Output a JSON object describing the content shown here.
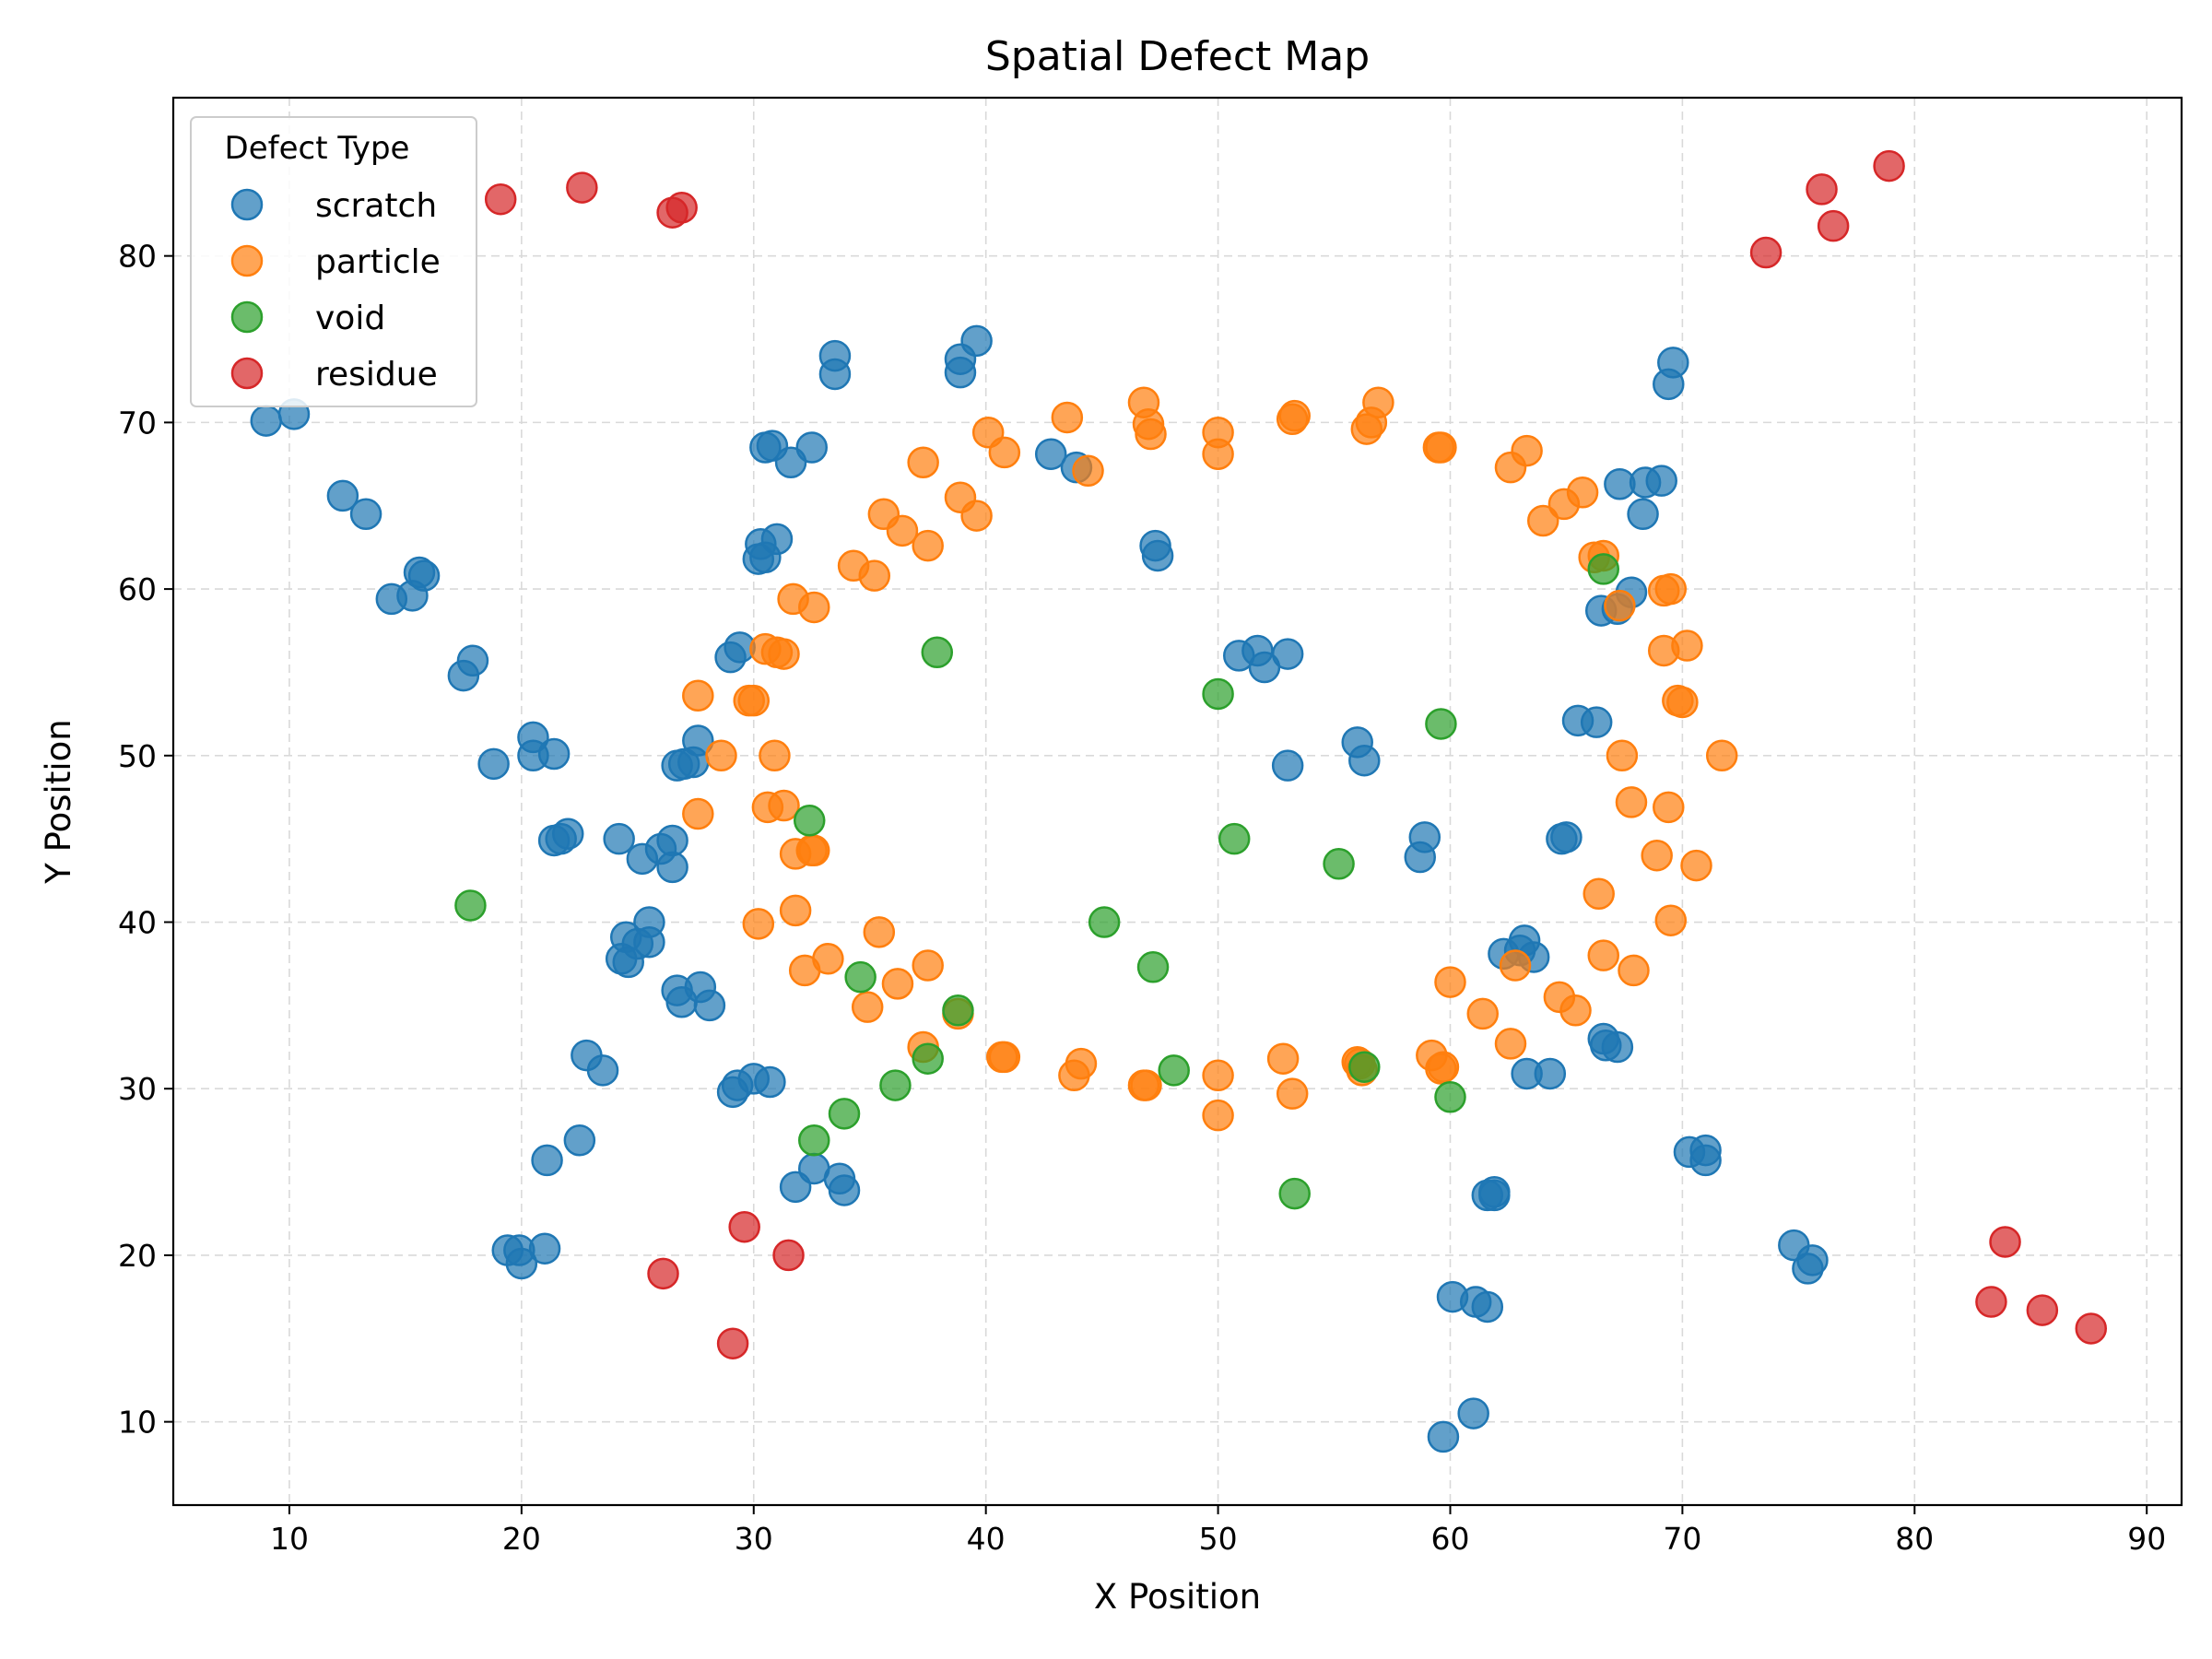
{
  "chart_data": {
    "type": "scatter",
    "title": "Spatial Defect Map",
    "xlabel": "X Position",
    "ylabel": "Y Position",
    "xlim": [
      5,
      91.5
    ],
    "ylim": [
      5,
      89.5
    ],
    "xticks": [
      10,
      20,
      30,
      40,
      50,
      60,
      70,
      80,
      90
    ],
    "yticks": [
      10,
      20,
      30,
      40,
      50,
      60,
      70,
      80
    ],
    "grid": true,
    "legend": {
      "title": "Defect Type",
      "placement": "top-left"
    },
    "series": [
      {
        "name": "scratch",
        "color": "#1f77b4",
        "points": [
          [
            9.0,
            70.1
          ],
          [
            10.2,
            70.5
          ],
          [
            12.3,
            65.6
          ],
          [
            13.3,
            64.5
          ],
          [
            15.6,
            61.0
          ],
          [
            15.8,
            60.8
          ],
          [
            15.3,
            59.6
          ],
          [
            14.4,
            59.4
          ],
          [
            17.9,
            55.7
          ],
          [
            17.5,
            54.8
          ],
          [
            20.5,
            51.1
          ],
          [
            20.5,
            50.0
          ],
          [
            21.4,
            50.1
          ],
          [
            18.8,
            49.5
          ],
          [
            21.4,
            44.9
          ],
          [
            21.7,
            45.0
          ],
          [
            22.0,
            45.3
          ],
          [
            24.2,
            45.0
          ],
          [
            25.2,
            43.8
          ],
          [
            26.0,
            44.4
          ],
          [
            26.5,
            44.9
          ],
          [
            26.5,
            43.3
          ],
          [
            25.5,
            40.0
          ],
          [
            24.5,
            39.1
          ],
          [
            25.0,
            38.7
          ],
          [
            25.5,
            38.8
          ],
          [
            24.3,
            37.8
          ],
          [
            24.6,
            37.6
          ],
          [
            26.7,
            49.4
          ],
          [
            27.0,
            49.5
          ],
          [
            27.4,
            49.6
          ],
          [
            27.6,
            50.9
          ],
          [
            26.7,
            35.9
          ],
          [
            26.9,
            35.2
          ],
          [
            27.7,
            36.1
          ],
          [
            28.1,
            35.0
          ],
          [
            22.8,
            32.0
          ],
          [
            23.5,
            31.1
          ],
          [
            22.5,
            26.9
          ],
          [
            21.1,
            25.7
          ],
          [
            19.4,
            20.3
          ],
          [
            19.9,
            20.3
          ],
          [
            20.0,
            19.5
          ],
          [
            21.0,
            20.4
          ],
          [
            29.0,
            55.9
          ],
          [
            29.4,
            56.5
          ],
          [
            30.2,
            61.8
          ],
          [
            30.5,
            61.9
          ],
          [
            30.3,
            62.7
          ],
          [
            31.0,
            63.0
          ],
          [
            30.5,
            68.5
          ],
          [
            30.8,
            68.6
          ],
          [
            31.6,
            67.6
          ],
          [
            32.5,
            68.5
          ],
          [
            33.5,
            74.0
          ],
          [
            33.5,
            72.9
          ],
          [
            38.9,
            73.8
          ],
          [
            38.9,
            73.0
          ],
          [
            39.6,
            74.9
          ],
          [
            42.8,
            68.1
          ],
          [
            43.9,
            67.3
          ],
          [
            47.3,
            62.6
          ],
          [
            47.4,
            62.0
          ],
          [
            29.1,
            29.8
          ],
          [
            29.3,
            30.2
          ],
          [
            30.0,
            30.6
          ],
          [
            30.7,
            30.4
          ],
          [
            31.8,
            24.1
          ],
          [
            32.6,
            25.2
          ],
          [
            33.7,
            24.6
          ],
          [
            33.9,
            23.9
          ],
          [
            50.9,
            56.0
          ],
          [
            51.7,
            56.3
          ],
          [
            52.0,
            55.3
          ],
          [
            53.0,
            56.1
          ],
          [
            53.0,
            49.4
          ],
          [
            56.0,
            50.8
          ],
          [
            56.3,
            49.7
          ],
          [
            58.7,
            43.9
          ],
          [
            58.9,
            45.1
          ],
          [
            62.3,
            38.1
          ],
          [
            63.0,
            38.3
          ],
          [
            63.2,
            38.9
          ],
          [
            63.6,
            37.9
          ],
          [
            63.3,
            30.9
          ],
          [
            64.3,
            30.9
          ],
          [
            64.8,
            45.0
          ],
          [
            65.0,
            45.1
          ],
          [
            65.5,
            52.1
          ],
          [
            66.3,
            52.0
          ],
          [
            66.5,
            58.7
          ],
          [
            67.2,
            58.8
          ],
          [
            67.8,
            59.8
          ],
          [
            67.3,
            66.3
          ],
          [
            68.3,
            64.5
          ],
          [
            68.4,
            66.4
          ],
          [
            69.1,
            66.5
          ],
          [
            69.6,
            73.6
          ],
          [
            69.4,
            72.3
          ],
          [
            66.6,
            33.0
          ],
          [
            66.7,
            32.6
          ],
          [
            67.2,
            32.5
          ],
          [
            61.6,
            23.6
          ],
          [
            61.9,
            23.6
          ],
          [
            61.9,
            23.8
          ],
          [
            60.1,
            17.5
          ],
          [
            61.1,
            17.2
          ],
          [
            61.6,
            16.9
          ],
          [
            59.7,
            9.1
          ],
          [
            61.0,
            10.5
          ],
          [
            70.3,
            26.2
          ],
          [
            71.0,
            26.3
          ],
          [
            71.0,
            25.7
          ],
          [
            74.8,
            20.6
          ],
          [
            75.4,
            19.2
          ],
          [
            75.6,
            19.7
          ]
        ]
      },
      {
        "name": "particle",
        "color": "#ff7f0e",
        "points": [
          [
            27.6,
            53.6
          ],
          [
            27.6,
            46.5
          ],
          [
            28.6,
            50.0
          ],
          [
            29.8,
            53.3
          ],
          [
            30.0,
            53.3
          ],
          [
            30.5,
            56.4
          ],
          [
            31.0,
            56.2
          ],
          [
            31.3,
            56.1
          ],
          [
            30.9,
            50.0
          ],
          [
            30.6,
            46.9
          ],
          [
            31.3,
            47.0
          ],
          [
            31.8,
            44.1
          ],
          [
            32.5,
            44.3
          ],
          [
            32.6,
            44.3
          ],
          [
            31.8,
            40.7
          ],
          [
            30.2,
            39.9
          ],
          [
            32.2,
            37.1
          ],
          [
            33.2,
            37.8
          ],
          [
            34.9,
            34.9
          ],
          [
            35.4,
            39.4
          ],
          [
            36.2,
            36.3
          ],
          [
            37.5,
            37.4
          ],
          [
            37.3,
            32.5
          ],
          [
            38.8,
            34.5
          ],
          [
            40.7,
            31.9
          ],
          [
            40.8,
            31.9
          ],
          [
            43.8,
            30.8
          ],
          [
            44.1,
            31.5
          ],
          [
            46.8,
            30.2
          ],
          [
            46.9,
            30.2
          ],
          [
            50.0,
            30.8
          ],
          [
            50.0,
            28.4
          ],
          [
            52.8,
            31.8
          ],
          [
            53.2,
            29.7
          ],
          [
            56.0,
            31.6
          ],
          [
            56.1,
            31.5
          ],
          [
            56.2,
            31.1
          ],
          [
            59.2,
            32.0
          ],
          [
            59.6,
            31.2
          ],
          [
            59.7,
            31.3
          ],
          [
            60.0,
            36.4
          ],
          [
            61.4,
            34.5
          ],
          [
            62.6,
            32.7
          ],
          [
            62.8,
            37.4
          ],
          [
            64.7,
            35.5
          ],
          [
            65.4,
            34.7
          ],
          [
            66.4,
            41.7
          ],
          [
            66.6,
            38.0
          ],
          [
            67.9,
            37.1
          ],
          [
            68.9,
            44.0
          ],
          [
            69.5,
            40.1
          ],
          [
            70.6,
            43.4
          ],
          [
            67.8,
            47.2
          ],
          [
            69.4,
            46.9
          ],
          [
            67.4,
            50.0
          ],
          [
            69.8,
            53.3
          ],
          [
            70.0,
            53.2
          ],
          [
            71.7,
            50.0
          ],
          [
            69.2,
            56.3
          ],
          [
            70.2,
            56.6
          ],
          [
            69.2,
            59.9
          ],
          [
            69.5,
            60.0
          ],
          [
            66.2,
            61.9
          ],
          [
            66.6,
            62.0
          ],
          [
            67.3,
            59.0
          ],
          [
            64.0,
            64.1
          ],
          [
            64.9,
            65.1
          ],
          [
            65.7,
            65.8
          ],
          [
            62.6,
            67.3
          ],
          [
            63.3,
            68.3
          ],
          [
            59.5,
            68.5
          ],
          [
            59.6,
            68.5
          ],
          [
            56.4,
            69.6
          ],
          [
            56.6,
            70.0
          ],
          [
            56.9,
            71.2
          ],
          [
            53.2,
            70.2
          ],
          [
            53.3,
            70.4
          ],
          [
            50.0,
            69.4
          ],
          [
            50.0,
            68.1
          ],
          [
            46.8,
            71.2
          ],
          [
            47.0,
            69.9
          ],
          [
            47.1,
            69.3
          ],
          [
            43.5,
            70.3
          ],
          [
            44.4,
            67.1
          ],
          [
            40.1,
            69.4
          ],
          [
            40.8,
            68.2
          ],
          [
            38.9,
            65.5
          ],
          [
            39.6,
            64.4
          ],
          [
            37.3,
            67.6
          ],
          [
            37.5,
            62.6
          ],
          [
            36.4,
            63.5
          ],
          [
            35.6,
            64.5
          ],
          [
            34.3,
            61.4
          ],
          [
            35.2,
            60.8
          ],
          [
            32.6,
            58.9
          ],
          [
            31.7,
            59.4
          ]
        ]
      },
      {
        "name": "void",
        "color": "#2ca02c",
        "points": [
          [
            17.8,
            41.0
          ],
          [
            32.4,
            46.1
          ],
          [
            34.6,
            36.7
          ],
          [
            33.9,
            28.5
          ],
          [
            32.6,
            26.9
          ],
          [
            36.1,
            30.2
          ],
          [
            37.5,
            31.8
          ],
          [
            38.8,
            34.7
          ],
          [
            37.9,
            56.2
          ],
          [
            45.1,
            40.0
          ],
          [
            47.2,
            37.3
          ],
          [
            48.1,
            31.1
          ],
          [
            50.0,
            53.7
          ],
          [
            50.7,
            45.0
          ],
          [
            55.2,
            43.5
          ],
          [
            56.3,
            31.3
          ],
          [
            53.3,
            23.7
          ],
          [
            59.6,
            51.9
          ],
          [
            60.0,
            29.5
          ],
          [
            66.6,
            61.2
          ]
        ]
      },
      {
        "name": "residue",
        "color": "#d62728",
        "points": [
          [
            19.1,
            83.4
          ],
          [
            22.6,
            84.1
          ],
          [
            26.5,
            82.6
          ],
          [
            26.9,
            82.9
          ],
          [
            73.6,
            80.2
          ],
          [
            76.0,
            84.0
          ],
          [
            76.5,
            81.8
          ],
          [
            78.9,
            85.4
          ],
          [
            26.1,
            18.9
          ],
          [
            29.6,
            21.7
          ],
          [
            31.5,
            20.0
          ],
          [
            29.1,
            14.7
          ],
          [
            83.3,
            17.2
          ],
          [
            83.9,
            20.8
          ],
          [
            85.5,
            16.7
          ],
          [
            87.6,
            15.6
          ]
        ]
      }
    ]
  }
}
